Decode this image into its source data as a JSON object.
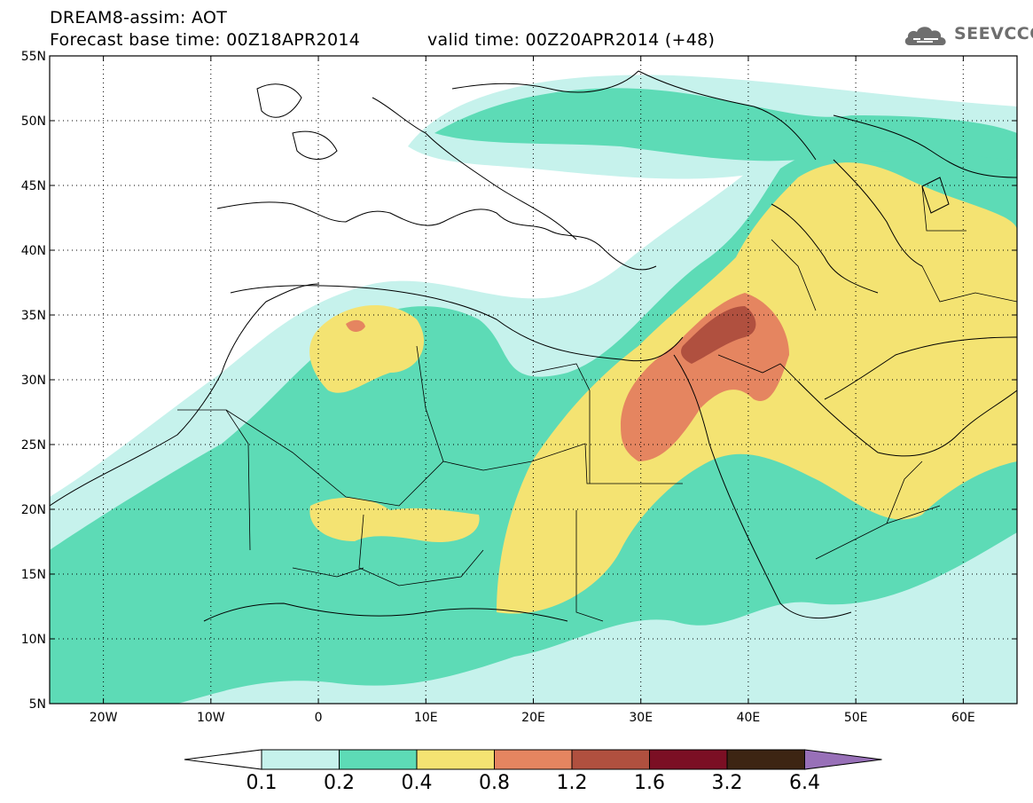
{
  "header": {
    "line1": "DREAM8-assim: AOT",
    "line2_left": "Forecast base time: 00Z18APR2014",
    "line2_right": "valid time: 00Z20APR2014 (+48)"
  },
  "logo": {
    "text": "SEEVCCC",
    "icon": "cloud-icon"
  },
  "map": {
    "lon_labels": [
      "20W",
      "10W",
      "0",
      "10E",
      "20E",
      "30E",
      "40E",
      "50E",
      "60E"
    ],
    "lat_labels": [
      "55N",
      "50N",
      "45N",
      "40N",
      "35N",
      "30N",
      "25N",
      "20N",
      "15N",
      "10N",
      "5N"
    ],
    "lon_range": [
      -25,
      65
    ],
    "lat_range": [
      5,
      55
    ],
    "grid": "dotted"
  },
  "colorbar": {
    "labels": [
      "0.1",
      "0.2",
      "0.4",
      "0.8",
      "1.2",
      "1.6",
      "3.2",
      "6.4"
    ],
    "colors": [
      "#ffffff",
      "#c6f2ec",
      "#5ddbb6",
      "#f4e372",
      "#e58560",
      "#b0503f",
      "#7b0f24",
      "#3d2513",
      "#9870b8"
    ]
  }
}
